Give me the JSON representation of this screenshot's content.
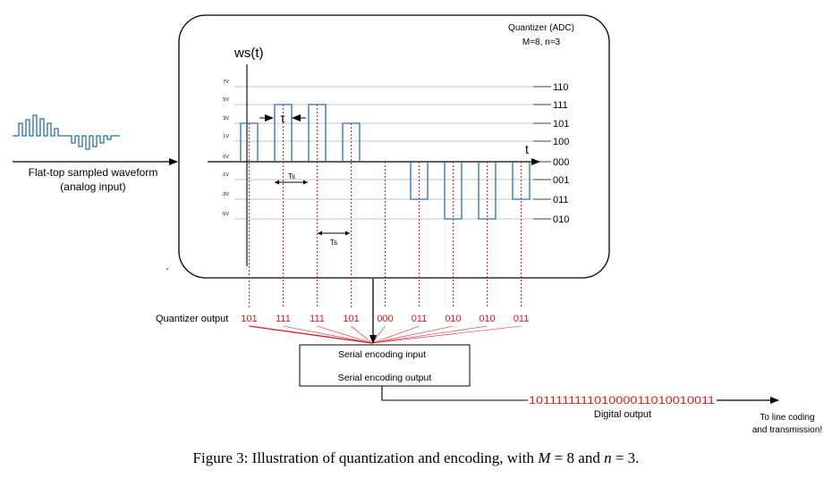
{
  "quantizer_box": {
    "title": "Quantizer (ADC)",
    "params": "M=8, n=3"
  },
  "plot": {
    "y_title": "ws(t)",
    "x_title": "t",
    "tau_label": "τ",
    "ts_label_1": "Ts",
    "ts_label_2": "Ts",
    "left_levels": [
      {
        "label": "7V",
        "value": 7
      },
      {
        "label": "5V",
        "value": 5
      },
      {
        "label": "3V",
        "value": 3
      },
      {
        "label": "1V",
        "value": 1
      },
      {
        "label": "0V",
        "value": 0
      },
      {
        "label": "-1V",
        "value": -1
      },
      {
        "label": "-3V",
        "value": -3
      },
      {
        "label": "-5V",
        "value": -5
      }
    ],
    "right_codes": [
      {
        "label": "110",
        "value": 7
      },
      {
        "label": "111",
        "value": 5
      },
      {
        "label": "101",
        "value": 3
      },
      {
        "label": "100",
        "value": 1
      },
      {
        "label": "000",
        "value": 0
      },
      {
        "label": "001",
        "value": -1
      },
      {
        "label": "011",
        "value": -3
      },
      {
        "label": "010",
        "value": -5
      }
    ],
    "samples": [
      3,
      5,
      5,
      3,
      0,
      -3,
      -5,
      -5,
      -3
    ]
  },
  "input": {
    "label_line1": "Flat-top sampled waveform",
    "label_line2": "(analog input)"
  },
  "quantizer_output": {
    "label": "Quantizer output",
    "codes": [
      "101",
      "111",
      "111",
      "101",
      "000",
      "011",
      "010",
      "010",
      "011"
    ]
  },
  "encoder": {
    "input_label": "Serial encoding input",
    "output_label": "Serial encoding output"
  },
  "digital_output": {
    "bits": "101111111101000011010010011",
    "label": "Digital output"
  },
  "destination": {
    "line1": "To line coding",
    "line2": "and transmission!"
  },
  "colors": {
    "signal": "#2a6db0",
    "code": "#e0191e",
    "grid": "#b0b0b0",
    "line": "#000000"
  },
  "caption": {
    "prefix": "Figure 3: Illustration of quantization and encoding, with ",
    "m_sym": "M",
    "m_eq": " = 8 and ",
    "n_sym": "n",
    "n_eq": " = 3."
  }
}
